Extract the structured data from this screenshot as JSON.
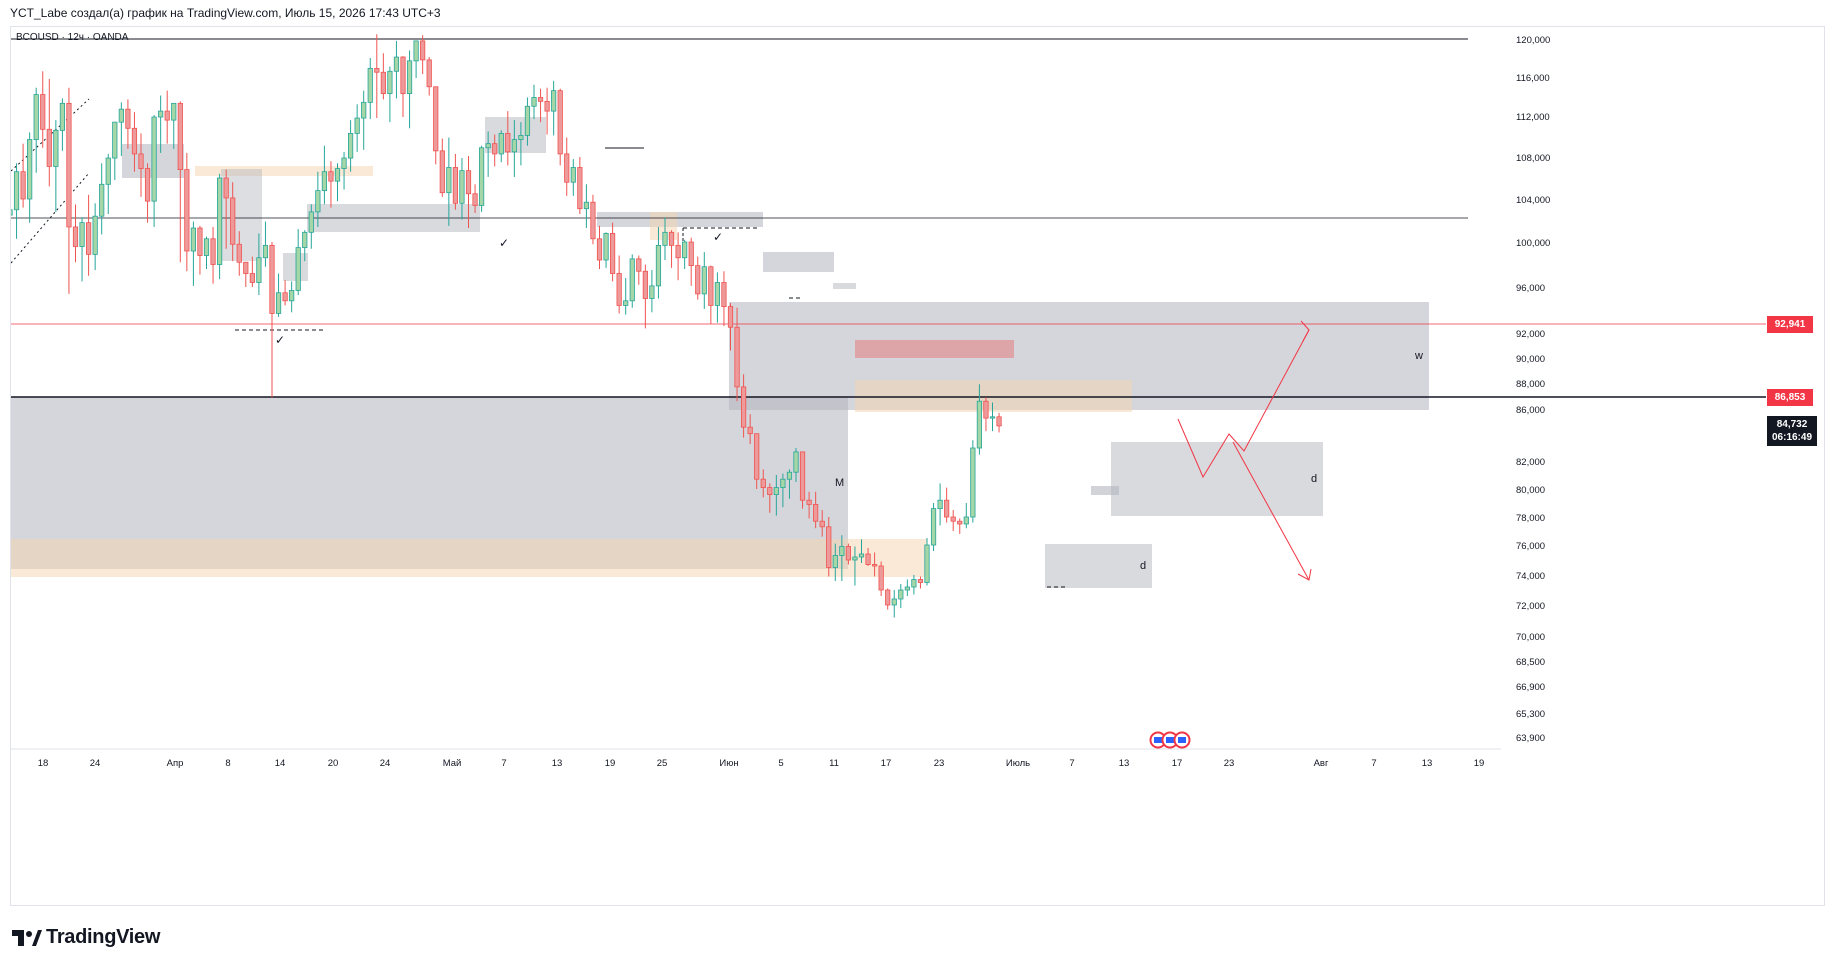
{
  "header": {
    "title": "YCT_Labe создал(а) график на TradingView.com, Июль 15, 2026 17:43 UTC+3",
    "symbol": "BCOUSD · 12ч · OANDA"
  },
  "price_tags": {
    "red_line": "92,941",
    "black_line": "86,853",
    "current_price": "84,732",
    "countdown": "06:16:49"
  },
  "annotations": {
    "m": "M",
    "w": "w",
    "d_right": "d",
    "d_bottom": "d",
    "check": "✓"
  },
  "logo": {
    "text": "TradingView"
  },
  "colors": {
    "bull": "#26a69a",
    "bull_fill": "#a5d6a7",
    "bear": "#ef5350",
    "bear_fill": "#ef9a9a",
    "zone_gray": "#b2b5be",
    "zone_orange": "#f5d3ad",
    "zone_red": "#e57373"
  },
  "chart_data": {
    "type": "candlestick",
    "symbol": "BCOUSD",
    "timeframe": "12ч",
    "y_ticks": [
      "120,000",
      "116,000",
      "112,000",
      "108,000",
      "104,000",
      "100,000",
      "96,000",
      "92,000",
      "90,000",
      "88,000",
      "86,000",
      "82,000",
      "80,000",
      "78,000",
      "76,000",
      "74,000",
      "72,000",
      "70,000",
      "68,500",
      "66,900",
      "65,300",
      "63,900"
    ],
    "x_ticks": [
      "18",
      "24",
      "Апр",
      "8",
      "14",
      "20",
      "24",
      "Май",
      "7",
      "13",
      "19",
      "25",
      "Июн",
      "5",
      "11",
      "17",
      "23",
      "Июль",
      "7",
      "13",
      "17",
      "23",
      "Авг",
      "7",
      "13",
      "19"
    ],
    "horizontal_levels": [
      120,
      102.2,
      92.941,
      86.853
    ],
    "ohlc": [
      [
        102.5,
        105.2,
        99.5,
        103.0
      ],
      [
        103.0,
        107.4,
        100.3,
        106.6
      ],
      [
        106.6,
        109.3,
        103.2,
        104.0
      ],
      [
        104.0,
        110.4,
        101.8,
        109.7
      ],
      [
        109.7,
        114.9,
        106.5,
        114.2
      ],
      [
        114.2,
        116.6,
        108.9,
        110.7
      ],
      [
        110.7,
        115.8,
        105.2,
        107.1
      ],
      [
        107.1,
        111.6,
        102.8,
        110.6
      ],
      [
        110.6,
        113.8,
        108.6,
        113.3
      ],
      [
        113.3,
        114.9,
        95.4,
        101.4
      ],
      [
        101.4,
        103.5,
        98.2,
        99.6
      ],
      [
        99.6,
        102.3,
        96.5,
        101.8
      ],
      [
        101.8,
        104.4,
        97.0,
        98.9
      ],
      [
        98.9,
        103.6,
        97.5,
        102.4
      ],
      [
        102.4,
        107.4,
        100.7,
        105.4
      ],
      [
        105.4,
        108.3,
        102.6,
        107.9
      ],
      [
        107.9,
        111.4,
        105.8,
        111.4
      ],
      [
        111.4,
        113.4,
        108.1,
        112.7
      ],
      [
        112.7,
        113.7,
        108.8,
        110.8
      ],
      [
        110.8,
        112.4,
        106.6,
        108.3
      ],
      [
        108.3,
        110.3,
        104.2,
        106.9
      ],
      [
        106.9,
        107.4,
        101.8,
        103.8
      ],
      [
        103.8,
        112.1,
        101.4,
        111.9
      ],
      [
        111.9,
        114.1,
        108.4,
        112.5
      ],
      [
        112.5,
        114.6,
        109.3,
        111.6
      ],
      [
        111.6,
        113.3,
        108.8,
        113.3
      ],
      [
        113.3,
        113.5,
        98.2,
        106.8
      ],
      [
        106.8,
        108.4,
        97.4,
        99.2
      ],
      [
        99.2,
        101.9,
        96.1,
        101.3
      ],
      [
        101.3,
        101.5,
        97.1,
        98.8
      ],
      [
        98.8,
        100.5,
        97.6,
        100.3
      ],
      [
        100.3,
        101.4,
        96.3,
        98.0
      ],
      [
        98.0,
        106.4,
        96.7,
        106.0
      ],
      [
        106.0,
        106.8,
        99.4,
        104.1
      ],
      [
        104.1,
        105.6,
        98.3,
        99.8
      ],
      [
        99.8,
        101.0,
        97.0,
        98.2
      ],
      [
        98.2,
        98.2,
        96.0,
        97.2
      ],
      [
        97.2,
        98.7,
        96.0,
        96.4
      ],
      [
        96.4,
        100.8,
        95.3,
        98.6
      ],
      [
        98.6,
        101.9,
        97.8,
        99.7
      ],
      [
        99.7,
        100.0,
        86.9,
        93.7
      ],
      [
        93.7,
        97.2,
        93.4,
        95.5
      ],
      [
        95.5,
        96.6,
        94.4,
        94.8
      ],
      [
        94.8,
        96.5,
        93.8,
        95.7
      ],
      [
        95.7,
        101.2,
        95.3,
        99.5
      ],
      [
        99.5,
        101.1,
        98.3,
        100.9
      ],
      [
        100.9,
        103.5,
        99.4,
        102.8
      ],
      [
        102.8,
        106.6,
        101.4,
        104.8
      ],
      [
        104.8,
        109.1,
        103.5,
        106.6
      ],
      [
        106.6,
        107.6,
        103.2,
        105.7
      ],
      [
        105.7,
        107.4,
        103.8,
        106.9
      ],
      [
        106.9,
        108.5,
        104.9,
        107.9
      ],
      [
        107.9,
        111.6,
        106.6,
        110.3
      ],
      [
        110.3,
        113.2,
        108.5,
        111.8
      ],
      [
        111.8,
        114.6,
        108.7,
        113.4
      ],
      [
        113.4,
        118.0,
        111.7,
        116.9
      ],
      [
        116.9,
        120.5,
        111.8,
        116.5
      ],
      [
        116.5,
        118.5,
        113.7,
        114.3
      ],
      [
        114.3,
        117.1,
        111.4,
        116.6
      ],
      [
        116.6,
        119.8,
        113.8,
        118.1
      ],
      [
        118.1,
        118.2,
        111.9,
        114.3
      ],
      [
        114.3,
        118.8,
        110.8,
        117.7
      ],
      [
        117.7,
        119.6,
        115.9,
        119.8
      ],
      [
        119.8,
        120.4,
        116.3,
        117.8
      ],
      [
        117.8,
        118.1,
        114.1,
        115.0
      ],
      [
        115.0,
        115.0,
        107.3,
        108.6
      ],
      [
        108.6,
        109.8,
        104.2,
        104.6
      ],
      [
        104.6,
        109.9,
        101.5,
        107.0
      ],
      [
        107.0,
        108.3,
        103.0,
        103.6
      ],
      [
        103.6,
        107.9,
        102.1,
        106.7
      ],
      [
        106.7,
        108.1,
        101.3,
        104.5
      ],
      [
        104.5,
        105.4,
        102.7,
        103.4
      ],
      [
        103.4,
        109.1,
        102.8,
        108.9
      ],
      [
        108.9,
        110.5,
        106.1,
        109.3
      ],
      [
        109.3,
        110.2,
        107.1,
        108.3
      ],
      [
        108.3,
        110.6,
        107.5,
        110.3
      ],
      [
        110.3,
        112.5,
        107.2,
        108.5
      ],
      [
        108.5,
        111.6,
        106.1,
        109.7
      ],
      [
        109.7,
        111.4,
        107.2,
        110.1
      ],
      [
        110.1,
        113.9,
        109.1,
        113.0
      ],
      [
        113.0,
        115.2,
        111.7,
        113.9
      ],
      [
        113.9,
        114.8,
        111.4,
        113.5
      ],
      [
        113.5,
        114.9,
        110.2,
        112.5
      ],
      [
        112.5,
        115.6,
        110.1,
        114.6
      ],
      [
        114.6,
        114.8,
        107.2,
        108.3
      ],
      [
        108.3,
        109.9,
        104.3,
        105.6
      ],
      [
        105.6,
        107.8,
        104.3,
        107.0
      ],
      [
        107.0,
        108.0,
        102.6,
        103.1
      ],
      [
        103.1,
        105.4,
        101.3,
        103.7
      ],
      [
        103.7,
        104.4,
        99.8,
        100.3
      ],
      [
        100.3,
        101.5,
        97.6,
        98.4
      ],
      [
        98.4,
        100.9,
        97.7,
        100.8
      ],
      [
        100.8,
        101.8,
        96.5,
        97.2
      ],
      [
        97.2,
        98.8,
        93.7,
        94.4
      ],
      [
        94.4,
        96.8,
        93.6,
        94.8
      ],
      [
        94.8,
        98.9,
        94.2,
        98.5
      ],
      [
        98.5,
        98.8,
        96.2,
        97.4
      ],
      [
        97.4,
        98.0,
        92.4,
        95.0
      ],
      [
        95.0,
        97.5,
        93.8,
        96.1
      ],
      [
        96.1,
        101.4,
        95.0,
        99.7
      ],
      [
        99.7,
        102.3,
        98.4,
        100.9
      ],
      [
        100.9,
        101.1,
        97.7,
        99.7
      ],
      [
        99.7,
        100.9,
        96.6,
        98.6
      ],
      [
        98.6,
        100.2,
        97.6,
        100.0
      ],
      [
        100.0,
        100.4,
        96.1,
        97.9
      ],
      [
        97.9,
        98.7,
        94.9,
        95.4
      ],
      [
        95.4,
        99.1,
        94.1,
        97.8
      ],
      [
        97.8,
        97.9,
        92.8,
        94.4
      ],
      [
        94.4,
        97.3,
        92.9,
        96.4
      ],
      [
        96.4,
        97.4,
        92.6,
        94.3
      ],
      [
        94.3,
        94.6,
        90.6,
        92.5
      ],
      [
        92.5,
        94.2,
        86.6,
        87.7
      ],
      [
        87.7,
        88.7,
        83.8,
        84.6
      ],
      [
        84.6,
        85.6,
        83.3,
        84.1
      ],
      [
        84.1,
        84.1,
        80.0,
        80.7
      ],
      [
        80.7,
        81.4,
        79.4,
        80.1
      ],
      [
        80.1,
        80.4,
        78.3,
        79.6
      ],
      [
        79.6,
        81.0,
        78.1,
        80.1
      ],
      [
        80.1,
        81.1,
        78.7,
        80.7
      ],
      [
        80.7,
        81.4,
        79.3,
        81.2
      ],
      [
        81.2,
        83.0,
        80.5,
        82.7
      ],
      [
        82.7,
        82.7,
        78.6,
        79.2
      ],
      [
        79.2,
        79.8,
        77.9,
        78.9
      ],
      [
        78.9,
        79.8,
        77.2,
        77.7
      ],
      [
        77.7,
        78.5,
        76.6,
        77.3
      ],
      [
        77.3,
        78.0,
        73.9,
        74.5
      ],
      [
        74.5,
        76.1,
        73.6,
        75.3
      ],
      [
        75.3,
        76.7,
        73.6,
        75.9
      ],
      [
        75.9,
        76.1,
        74.7,
        75.0
      ],
      [
        75.0,
        75.9,
        73.3,
        75.2
      ],
      [
        75.2,
        76.4,
        74.8,
        75.4
      ],
      [
        75.4,
        75.8,
        74.6,
        74.7
      ],
      [
        74.7,
        75.5,
        73.9,
        74.6
      ],
      [
        74.6,
        74.9,
        72.6,
        73.0
      ],
      [
        73.0,
        73.1,
        71.7,
        72.0
      ],
      [
        72.0,
        73.0,
        71.2,
        72.4
      ],
      [
        72.4,
        73.4,
        71.8,
        73.0
      ],
      [
        73.0,
        73.7,
        72.6,
        73.2
      ],
      [
        73.2,
        74.0,
        72.7,
        73.7
      ],
      [
        73.7,
        73.9,
        73.1,
        73.5
      ],
      [
        73.5,
        76.5,
        73.3,
        76.0
      ],
      [
        76.0,
        79.0,
        75.6,
        78.6
      ],
      [
        78.6,
        80.4,
        77.4,
        79.2
      ],
      [
        79.2,
        80.1,
        77.6,
        78.0
      ],
      [
        78.0,
        78.5,
        77.0,
        77.7
      ],
      [
        77.7,
        77.9,
        76.8,
        77.5
      ],
      [
        77.5,
        79.0,
        77.2,
        78.0
      ],
      [
        78.0,
        83.6,
        77.6,
        83.0
      ],
      [
        83.0,
        87.9,
        82.5,
        86.6
      ],
      [
        86.6,
        86.9,
        84.3,
        85.3
      ],
      [
        85.3,
        86.5,
        84.3,
        85.4
      ],
      [
        85.4,
        85.7,
        84.2,
        84.7
      ]
    ]
  }
}
